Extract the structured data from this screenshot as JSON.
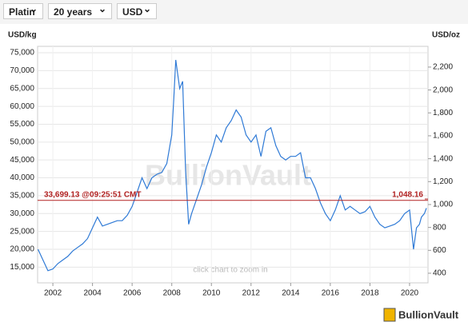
{
  "controls": [
    "Platin",
    "20 years",
    "USD"
  ],
  "chart_data": {
    "type": "line",
    "ylabel": "USD/kg",
    "y2label": "USD/oz",
    "watermark": "BullionVault",
    "hint": "click chart to zoom in",
    "logo": "BullionVault",
    "color": "#2f7ad6",
    "grid": true,
    "xlim": [
      2001.23,
      2020.93
    ],
    "xticks": [
      2002,
      2004,
      2006,
      2008,
      2010,
      2012,
      2014,
      2016,
      2018,
      2020
    ],
    "ylim": [
      10600,
      76800
    ],
    "yticks": [
      {
        "value": 15000,
        "label": "15,000"
      },
      {
        "value": 20000,
        "label": "20,000"
      },
      {
        "value": 25000,
        "label": "25,000"
      },
      {
        "value": 30000,
        "label": "30,000"
      },
      {
        "value": 35000,
        "label": "35,000"
      },
      {
        "value": 40000,
        "label": "40,000"
      },
      {
        "value": 45000,
        "label": "45,000"
      },
      {
        "value": 50000,
        "label": "50,000"
      },
      {
        "value": 55000,
        "label": "55,000"
      },
      {
        "value": 60000,
        "label": "60,000"
      },
      {
        "value": 65000,
        "label": "65,000"
      },
      {
        "value": 70000,
        "label": "70,000"
      },
      {
        "value": 75000,
        "label": "75,000"
      }
    ],
    "y2lim": [
      316,
      2381
    ],
    "y2ticks": [
      400,
      600,
      800,
      {
        "value": 1000,
        "label": "1,000"
      },
      {
        "value": 1200,
        "label": "1,200"
      },
      {
        "value": 1400,
        "label": "1,400"
      },
      {
        "value": 1600,
        "label": "1,600"
      },
      {
        "value": 1800,
        "label": "1,800"
      },
      {
        "value": 2000,
        "label": "2,000"
      },
      {
        "value": 2200,
        "label": "2,200"
      }
    ],
    "reference_line": {
      "value": 33699.13,
      "label": "33,699.13 @09:25:51 CMT",
      "y2_value": 1048.16,
      "y2_label": "1,048.16"
    },
    "x": [
      2001.25,
      2001.5,
      2001.75,
      2002.0,
      2002.25,
      2002.5,
      2002.75,
      2003.0,
      2003.25,
      2003.5,
      2003.75,
      2004.0,
      2004.25,
      2004.5,
      2004.75,
      2005.0,
      2005.25,
      2005.5,
      2005.75,
      2006.0,
      2006.25,
      2006.5,
      2006.75,
      2007.0,
      2007.25,
      2007.5,
      2007.75,
      2008.0,
      2008.1,
      2008.2,
      2008.4,
      2008.55,
      2008.7,
      2008.85,
      2009.0,
      2009.25,
      2009.5,
      2009.75,
      2010.0,
      2010.25,
      2010.5,
      2010.75,
      2011.0,
      2011.25,
      2011.5,
      2011.75,
      2012.0,
      2012.25,
      2012.5,
      2012.75,
      2013.0,
      2013.25,
      2013.5,
      2013.75,
      2014.0,
      2014.25,
      2014.5,
      2014.75,
      2015.0,
      2015.25,
      2015.5,
      2015.75,
      2016.0,
      2016.25,
      2016.5,
      2016.75,
      2017.0,
      2017.25,
      2017.5,
      2017.75,
      2018.0,
      2018.25,
      2018.5,
      2018.75,
      2019.0,
      2019.25,
      2019.5,
      2019.75,
      2020.0,
      2020.2,
      2020.35,
      2020.5,
      2020.6,
      2020.75,
      2020.85
    ],
    "values": [
      20000,
      17000,
      14000,
      14500,
      16000,
      17000,
      18000,
      19500,
      20500,
      21500,
      23000,
      26000,
      29000,
      26500,
      27000,
      27500,
      28000,
      28000,
      29500,
      32000,
      36000,
      40000,
      37000,
      40000,
      41000,
      41500,
      44000,
      52000,
      62000,
      73000,
      65000,
      67000,
      42000,
      27000,
      30000,
      34000,
      38000,
      43000,
      47000,
      52000,
      50000,
      54000,
      56000,
      59000,
      57000,
      52000,
      50000,
      52000,
      46000,
      53000,
      54000,
      49000,
      46000,
      45000,
      46000,
      46000,
      47000,
      40000,
      40000,
      37000,
      33000,
      30000,
      28000,
      31000,
      35000,
      31000,
      32000,
      31000,
      30000,
      30500,
      32000,
      29000,
      27000,
      26000,
      26500,
      27000,
      28000,
      30000,
      31000,
      20000,
      26000,
      27000,
      29000,
      30000,
      31500
    ]
  }
}
